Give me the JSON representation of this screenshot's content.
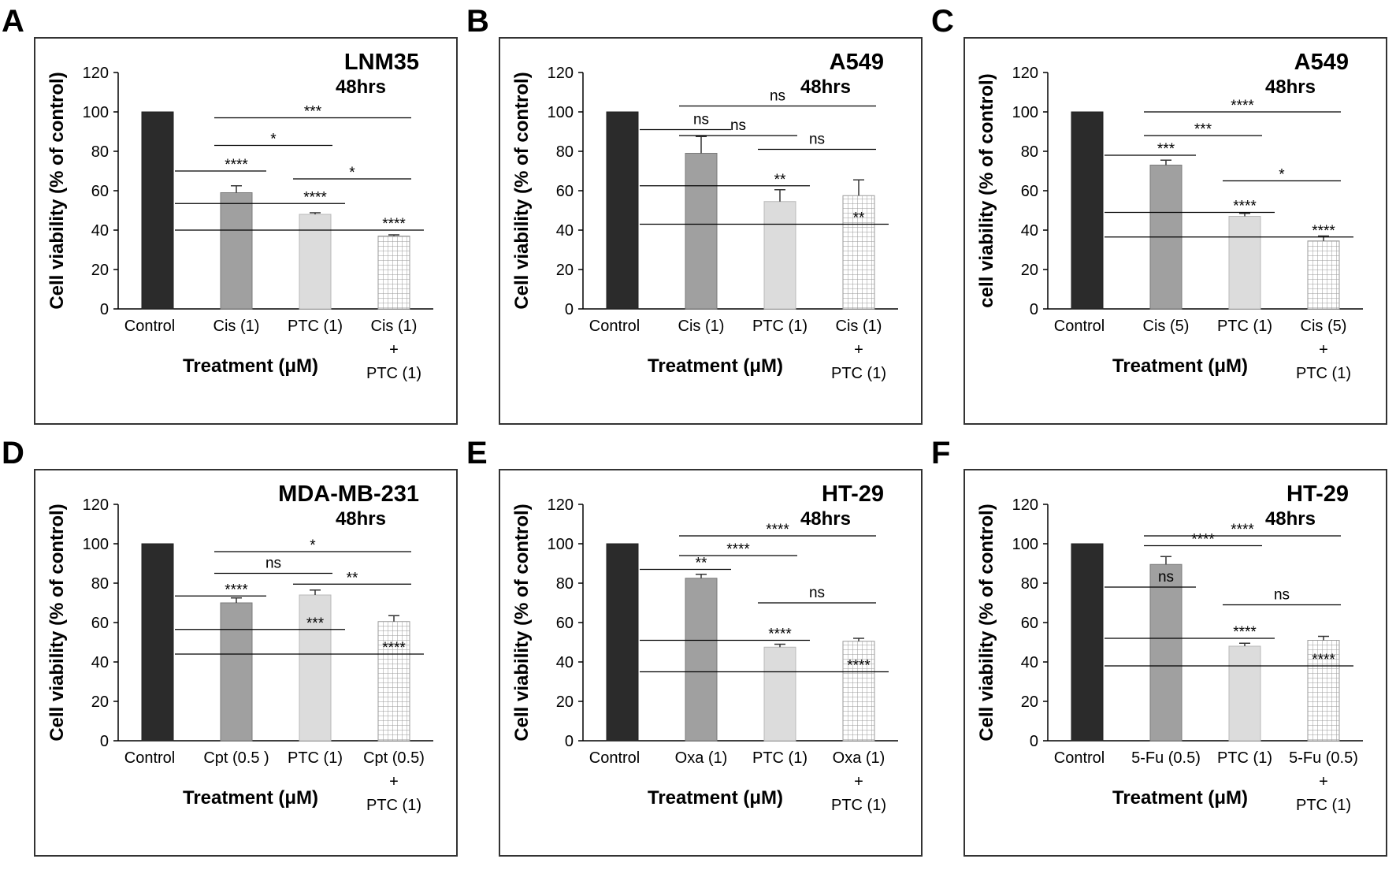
{
  "figure": {
    "y_label": "Cell viability (% of control)",
    "x_label": "Treatment (μM)",
    "colors": {
      "control": "#2b2b2b",
      "drug": "#a0a0a0",
      "ptc": "#dcdcdc",
      "combo": "#ffffff",
      "combo_grid": "#9a9a9a",
      "frame": "#333333"
    }
  },
  "chart_data": [
    {
      "panel": "A",
      "type": "bar",
      "title": "LNM35",
      "subtitle": "48hrs",
      "ylabel": "Cell viability (% of control)",
      "xlabel": "Treatment (μM)",
      "ylim": [
        0,
        120
      ],
      "yticks": [
        0,
        20,
        40,
        60,
        80,
        100,
        120
      ],
      "categories": [
        [
          "Control"
        ],
        [
          "Cis (1)"
        ],
        [
          "PTC (1)"
        ],
        [
          "Cis (1)",
          "+",
          "PTC (1)"
        ]
      ],
      "values": [
        100,
        59,
        48,
        37
      ],
      "errors": [
        0,
        3.5,
        0.8,
        0.6
      ],
      "comparisons": [
        {
          "from": 0,
          "to": 1,
          "y": 70,
          "label": "****"
        },
        {
          "from": 0,
          "to": 2,
          "y": 53.5,
          "label": "****"
        },
        {
          "from": 0,
          "to": 3,
          "y": 40,
          "label": "****"
        },
        {
          "from": 1,
          "to": 2,
          "y": 83,
          "label": "*"
        },
        {
          "from": 1,
          "to": 3,
          "y": 97,
          "label": "***"
        },
        {
          "from": 2,
          "to": 3,
          "y": 66,
          "label": "*"
        }
      ]
    },
    {
      "panel": "B",
      "type": "bar",
      "title": "A549",
      "subtitle": "48hrs",
      "ylabel": "Cell viability (% of control)",
      "xlabel": "Treatment (μM)",
      "ylim": [
        0,
        120
      ],
      "yticks": [
        0,
        20,
        40,
        60,
        80,
        100,
        120
      ],
      "categories": [
        [
          "Control"
        ],
        [
          "Cis (1)"
        ],
        [
          "PTC (1)"
        ],
        [
          "Cis (1)",
          "+",
          "PTC (1)"
        ]
      ],
      "values": [
        100,
        79,
        54.5,
        57.5
      ],
      "errors": [
        0,
        8.5,
        6,
        8
      ],
      "comparisons": [
        {
          "from": 0,
          "to": 1,
          "y": 91,
          "label": "ns"
        },
        {
          "from": 0,
          "to": 2,
          "y": 62.5,
          "label": "**"
        },
        {
          "from": 0,
          "to": 3,
          "y": 43,
          "label": "**"
        },
        {
          "from": 1,
          "to": 2,
          "y": 88,
          "label": "ns"
        },
        {
          "from": 1,
          "to": 3,
          "y": 103,
          "label": "ns"
        },
        {
          "from": 2,
          "to": 3,
          "y": 81,
          "label": "ns"
        }
      ]
    },
    {
      "panel": "C",
      "type": "bar",
      "title": "A549",
      "subtitle": "48hrs",
      "ylabel": "cell viability (% of control)",
      "xlabel": "Treatment (μM)",
      "ylim": [
        0,
        120
      ],
      "yticks": [
        0,
        20,
        40,
        60,
        80,
        100,
        120
      ],
      "categories": [
        [
          "Control"
        ],
        [
          "Cis (5)"
        ],
        [
          "PTC (1)"
        ],
        [
          "Cis (5)",
          "+",
          "PTC (1)"
        ]
      ],
      "values": [
        100,
        73,
        47,
        34.5
      ],
      "errors": [
        0,
        2.5,
        1.5,
        2.5
      ],
      "comparisons": [
        {
          "from": 0,
          "to": 1,
          "y": 78,
          "label": "***"
        },
        {
          "from": 0,
          "to": 2,
          "y": 49,
          "label": "****"
        },
        {
          "from": 0,
          "to": 3,
          "y": 36.5,
          "label": "****"
        },
        {
          "from": 1,
          "to": 2,
          "y": 88,
          "label": "***"
        },
        {
          "from": 1,
          "to": 3,
          "y": 100,
          "label": "****"
        },
        {
          "from": 2,
          "to": 3,
          "y": 65,
          "label": "*"
        }
      ]
    },
    {
      "panel": "D",
      "type": "bar",
      "title": "MDA-MB-231",
      "subtitle": "48hrs",
      "ylabel": "Cell viability (% of control)",
      "xlabel": "Treatment (μM)",
      "ylim": [
        0,
        120
      ],
      "yticks": [
        0,
        20,
        40,
        60,
        80,
        100,
        120
      ],
      "categories": [
        [
          "Control"
        ],
        [
          "Cpt (0.5 )"
        ],
        [
          "PTC (1)"
        ],
        [
          "Cpt (0.5)",
          "+",
          "PTC (1)"
        ]
      ],
      "values": [
        100,
        70,
        74,
        60.5
      ],
      "errors": [
        0,
        2.5,
        2.5,
        3
      ],
      "comparisons": [
        {
          "from": 0,
          "to": 1,
          "y": 73.5,
          "label": "****"
        },
        {
          "from": 0,
          "to": 2,
          "y": 56.5,
          "label": "***"
        },
        {
          "from": 0,
          "to": 3,
          "y": 44,
          "label": "****"
        },
        {
          "from": 1,
          "to": 2,
          "y": 85,
          "label": "ns"
        },
        {
          "from": 1,
          "to": 3,
          "y": 96,
          "label": "*"
        },
        {
          "from": 2,
          "to": 3,
          "y": 79.5,
          "label": "**"
        }
      ]
    },
    {
      "panel": "E",
      "type": "bar",
      "title": "HT-29",
      "subtitle": "48hrs",
      "ylabel": "Cell viability (% of control)",
      "xlabel": "Treatment (μM)",
      "ylim": [
        0,
        120
      ],
      "yticks": [
        0,
        20,
        40,
        60,
        80,
        100,
        120
      ],
      "categories": [
        [
          "Control"
        ],
        [
          "Oxa (1)"
        ],
        [
          "PTC (1)"
        ],
        [
          "Oxa (1)",
          "+",
          "PTC (1)"
        ]
      ],
      "values": [
        100,
        82.5,
        47.5,
        50.5
      ],
      "errors": [
        0,
        2,
        1.5,
        1.5
      ],
      "comparisons": [
        {
          "from": 0,
          "to": 1,
          "y": 87,
          "label": "**"
        },
        {
          "from": 0,
          "to": 2,
          "y": 51,
          "label": "****"
        },
        {
          "from": 0,
          "to": 3,
          "y": 35,
          "label": "****"
        },
        {
          "from": 1,
          "to": 2,
          "y": 94,
          "label": "****"
        },
        {
          "from": 1,
          "to": 3,
          "y": 104,
          "label": "****"
        },
        {
          "from": 2,
          "to": 3,
          "y": 70,
          "label": "ns"
        }
      ]
    },
    {
      "panel": "F",
      "type": "bar",
      "title": "HT-29",
      "subtitle": "48hrs",
      "ylabel": "Cell viability (% of control)",
      "xlabel": "Treatment (μM)",
      "ylim": [
        0,
        120
      ],
      "yticks": [
        0,
        20,
        40,
        60,
        80,
        100,
        120
      ],
      "categories": [
        [
          "Control"
        ],
        [
          "5-Fu (0.5)"
        ],
        [
          "PTC (1)"
        ],
        [
          "5-Fu (0.5)",
          "+",
          "PTC (1)"
        ]
      ],
      "values": [
        100,
        89.5,
        48,
        51
      ],
      "errors": [
        0,
        4,
        1.5,
        2
      ],
      "comparisons": [
        {
          "from": 0,
          "to": 1,
          "y": 78,
          "label": "ns"
        },
        {
          "from": 0,
          "to": 2,
          "y": 52,
          "label": "****"
        },
        {
          "from": 0,
          "to": 3,
          "y": 38,
          "label": "****"
        },
        {
          "from": 1,
          "to": 2,
          "y": 99,
          "label": "****"
        },
        {
          "from": 1,
          "to": 3,
          "y": 104,
          "label": "****"
        },
        {
          "from": 2,
          "to": 3,
          "y": 69,
          "label": "ns"
        }
      ]
    }
  ]
}
